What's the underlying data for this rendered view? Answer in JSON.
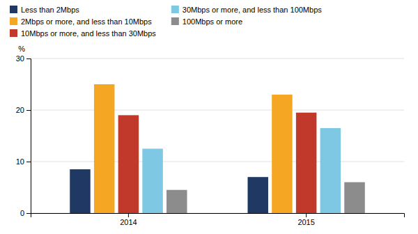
{
  "chart_data": {
    "type": "bar",
    "categories": [
      "2014",
      "2015"
    ],
    "series": [
      {
        "name": "Less than 2Mbps",
        "color": "#1f3864",
        "values": [
          8.5,
          7.0
        ]
      },
      {
        "name": "2Mbps or more, and less than 10Mbps",
        "color": "#f5a623",
        "values": [
          25.0,
          23.0
        ]
      },
      {
        "name": "10Mbps or more, and less than 30Mbps",
        "color": "#c0392b",
        "values": [
          19.0,
          19.5
        ]
      },
      {
        "name": "30Mbps or more, and less than 100Mbps",
        "color": "#7ec8e3",
        "values": [
          12.5,
          16.5
        ]
      },
      {
        "name": "100Mbps or more",
        "color": "#8c8c8c",
        "values": [
          4.5,
          6.0
        ]
      }
    ],
    "ylabel": "%",
    "ylim": [
      0,
      30
    ],
    "yticks": [
      0,
      10,
      20,
      30
    ],
    "grid": true,
    "legend": "top-left"
  }
}
